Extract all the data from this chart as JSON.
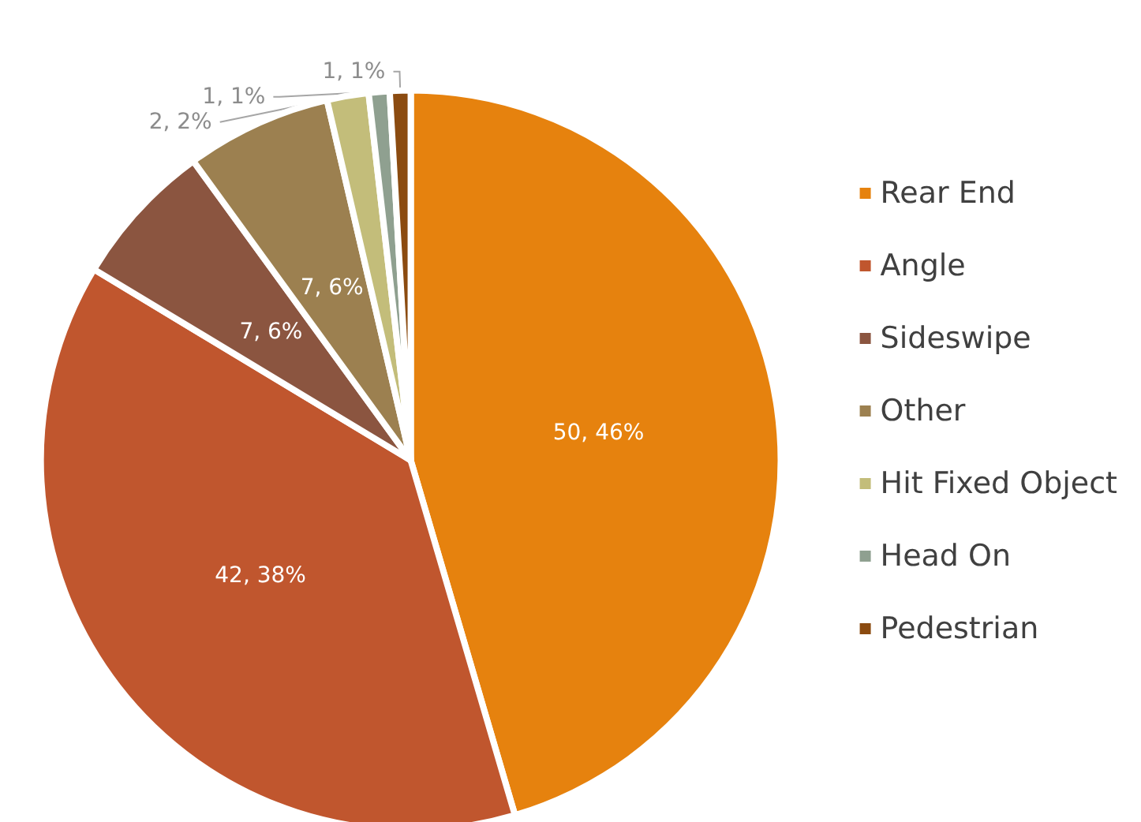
{
  "chart_data": {
    "type": "pie",
    "categories": [
      "Rear End",
      "Angle",
      "Sideswipe",
      "Other",
      "Hit Fixed Object",
      "Head On",
      "Pedestrian"
    ],
    "values": [
      50,
      42,
      7,
      7,
      2,
      1,
      1
    ],
    "colors": [
      "#e6820e",
      "#c0562e",
      "#8b5540",
      "#9c8050",
      "#c3bd7a",
      "#8fa090",
      "#8b4b10"
    ],
    "value_labels": [
      "50, 46%",
      "42, 38%",
      "7, 6%",
      "7, 6%",
      "2, 2%",
      "1, 1%",
      "1, 1%"
    ],
    "legend": "right"
  }
}
